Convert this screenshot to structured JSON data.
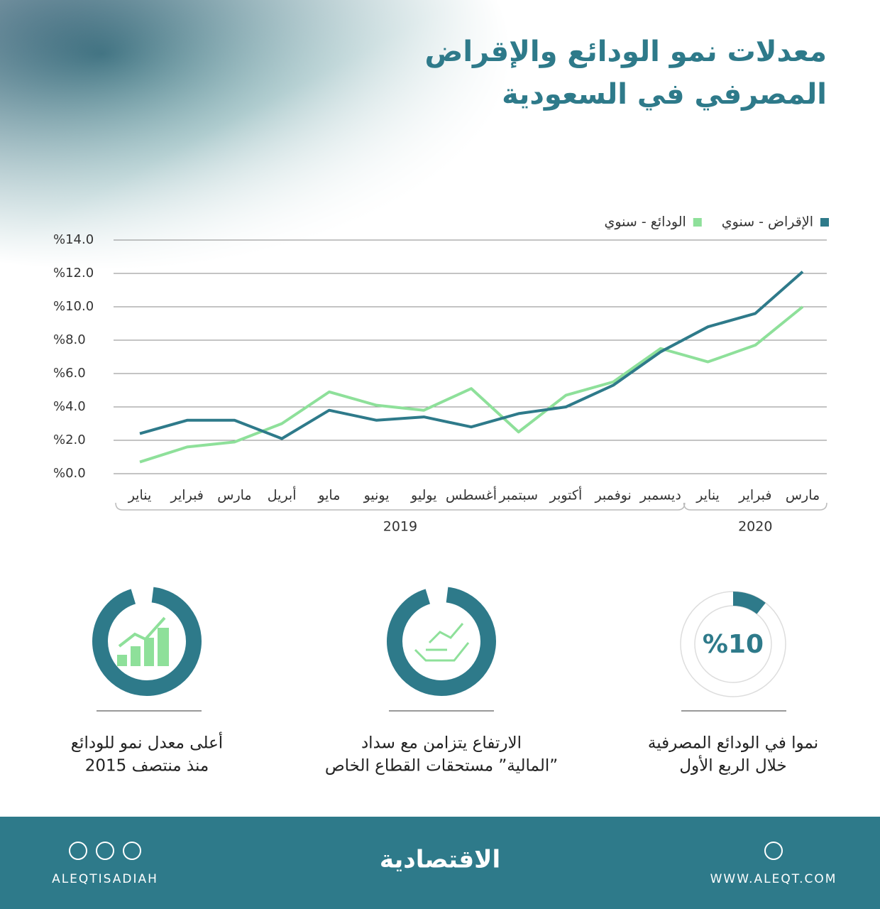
{
  "title_lines": [
    "معدلات نمو الودائع والإقراض",
    "المصرفي في السعودية"
  ],
  "chart_data": {
    "type": "line",
    "categories": [
      "يناير",
      "فبراير",
      "مارس",
      "أبريل",
      "مايو",
      "يونيو",
      "يوليو",
      "أغسطس",
      "سبتمبر",
      "أكتوبر",
      "نوفمبر",
      "ديسمبر",
      "يناير",
      "فبراير",
      "مارس"
    ],
    "category_groups": [
      {
        "label": "2019",
        "count": 12
      },
      {
        "label": "2020",
        "count": 3
      }
    ],
    "series": [
      {
        "name": "الإقراض - سنوي",
        "color": "#2e7a8a",
        "values": [
          2.4,
          3.2,
          3.2,
          2.1,
          3.8,
          3.2,
          3.4,
          2.8,
          3.6,
          4.0,
          5.3,
          7.3,
          8.8,
          9.6,
          12.1
        ]
      },
      {
        "name": "الودائع - سنوي",
        "color": "#8ee09a",
        "values": [
          0.7,
          1.6,
          1.9,
          3.0,
          4.9,
          4.1,
          3.8,
          5.1,
          2.5,
          4.7,
          5.5,
          7.5,
          6.7,
          7.7,
          10.0
        ]
      }
    ],
    "ylim": [
      0,
      14
    ],
    "yticks": [
      {
        "value": 0,
        "label": "%0.0"
      },
      {
        "value": 2,
        "label": "%2.0"
      },
      {
        "value": 4,
        "label": "%4.0"
      },
      {
        "value": 6,
        "label": "%6.0"
      },
      {
        "value": 8,
        "label": "%8.0"
      },
      {
        "value": 10,
        "label": "%10.0"
      },
      {
        "value": 12,
        "label": "%12.0"
      },
      {
        "value": 14,
        "label": "%14.0"
      }
    ],
    "grid": true
  },
  "facts": [
    {
      "value": 10,
      "value_label": "%10",
      "lines": [
        "نموا في الودائع المصرفية",
        "خلال الربع الأول"
      ]
    },
    {
      "lines": [
        "الارتفاع يتزامن مع سداد",
        "”المالية” مستحقات القطاع الخاص"
      ]
    },
    {
      "lines": [
        "أعلى معدل نمو للودائع",
        "منذ منتصف 2015"
      ]
    }
  ],
  "footer": {
    "left": "ALEQTISADIAH",
    "logo": "الاقتصادية",
    "right": "WWW.ALEQT.COM"
  }
}
